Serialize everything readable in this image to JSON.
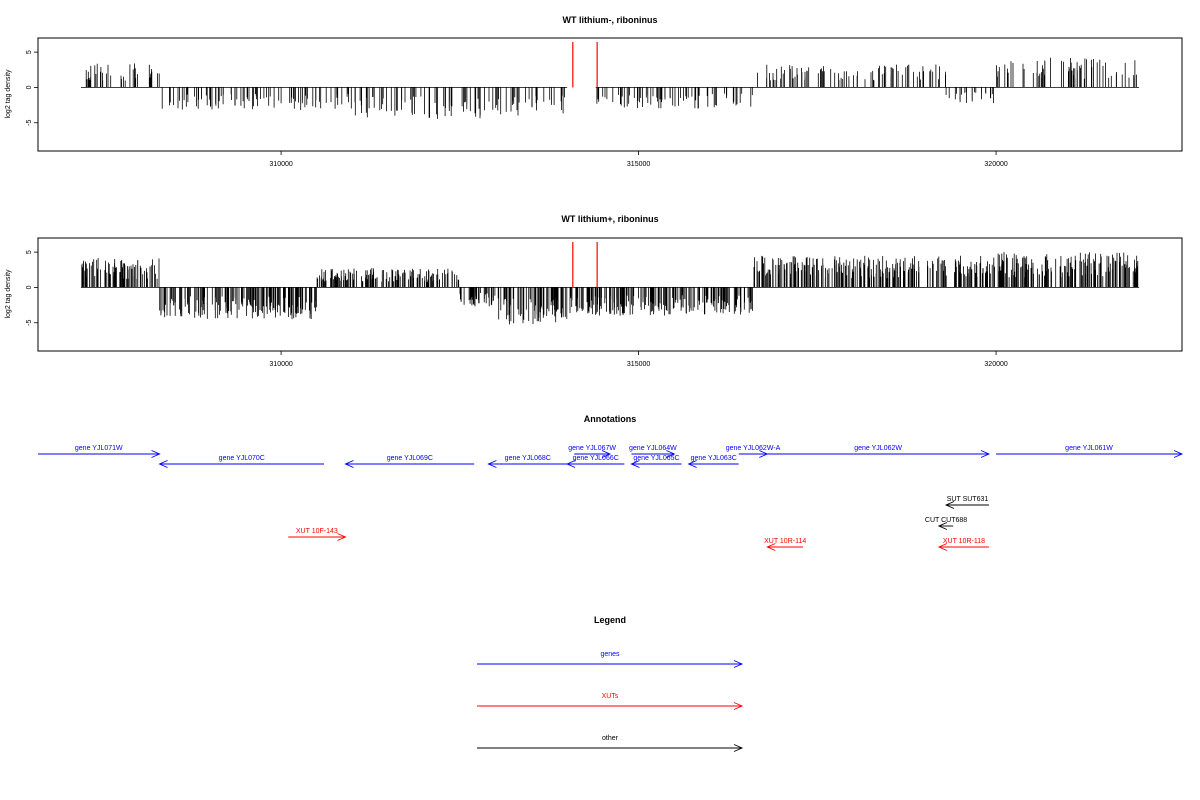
{
  "colors": {
    "gene": "#0000ff",
    "xut": "#ff0000",
    "other": "#000000",
    "marker": "#ff0000",
    "signal": "#000000"
  },
  "chart_data": [
    {
      "type": "bar",
      "title": "WT lithium-, riboninus",
      "ylabel": "log2 tag density",
      "xlim": [
        306600,
        322600
      ],
      "ylim": [
        -9,
        7
      ],
      "xticks": [
        310000,
        315000,
        320000
      ],
      "xtick_labels": [
        "310000",
        "315000",
        "320000"
      ],
      "yticks": [
        -5,
        0,
        5
      ],
      "ytick_labels": [
        "-5",
        "0",
        "5"
      ],
      "markers_x": [
        314080,
        314420
      ],
      "segments": [
        {
          "x": [
            307200,
            308300
          ],
          "level": 2.8
        },
        {
          "x": [
            308300,
            310950
          ],
          "level": -2.6
        },
        {
          "x": [
            310950,
            311800
          ],
          "level": -3.4
        },
        {
          "x": [
            311800,
            313200
          ],
          "level": -3.6
        },
        {
          "x": [
            313200,
            314000
          ],
          "level": -3.2
        },
        {
          "x": [
            314400,
            316600
          ],
          "level": -2.4
        },
        {
          "x": [
            316600,
            319300
          ],
          "level": 2.6
        },
        {
          "x": [
            319300,
            320000
          ],
          "level": -1.8
        },
        {
          "x": [
            320000,
            322000
          ],
          "level": 3.4
        }
      ],
      "grid": false
    },
    {
      "type": "bar",
      "title": "WT lithium+, riboninus",
      "ylabel": "log2 tag density",
      "xlim": [
        306600,
        322600
      ],
      "ylim": [
        -9,
        7
      ],
      "xticks": [
        310000,
        315000,
        320000
      ],
      "xtick_labels": [
        "310000",
        "315000",
        "320000"
      ],
      "yticks": [
        -5,
        0,
        5
      ],
      "ytick_labels": [
        "-5",
        "0",
        "5"
      ],
      "markers_x": [
        314080,
        314420
      ],
      "segments": [
        {
          "x": [
            307200,
            308300
          ],
          "level": 3.4
        },
        {
          "x": [
            308300,
            310500
          ],
          "level": -3.6
        },
        {
          "x": [
            310500,
            312500
          ],
          "level": 2.2
        },
        {
          "x": [
            312500,
            313000
          ],
          "level": -2.2
        },
        {
          "x": [
            313000,
            314000
          ],
          "level": -4.2
        },
        {
          "x": [
            314000,
            316600
          ],
          "level": -3.2
        },
        {
          "x": [
            316600,
            320000
          ],
          "level": 3.6
        },
        {
          "x": [
            320000,
            322000
          ],
          "level": 4.0
        }
      ],
      "grid": false
    }
  ],
  "annotations": {
    "title": "Annotations",
    "features": [
      {
        "label": "gene YJL071W",
        "kind": "gene",
        "start": 306600,
        "end": 308300,
        "strand": "+",
        "row": 0
      },
      {
        "label": "gene YJL070C",
        "kind": "gene",
        "start": 308300,
        "end": 310600,
        "strand": "-",
        "row": 1
      },
      {
        "label": "gene YJL069C",
        "kind": "gene",
        "start": 310900,
        "end": 312700,
        "strand": "-",
        "row": 1
      },
      {
        "label": "gene YJL068C",
        "kind": "gene",
        "start": 312900,
        "end": 314000,
        "strand": "-",
        "row": 1
      },
      {
        "label": "gene YJL067W",
        "kind": "gene",
        "start": 314100,
        "end": 314600,
        "strand": "+",
        "row": 0
      },
      {
        "label": "gene YJL066C",
        "kind": "gene",
        "start": 314000,
        "end": 314800,
        "strand": "-",
        "row": 1
      },
      {
        "label": "gene YJL064W",
        "kind": "gene",
        "start": 314900,
        "end": 315500,
        "strand": "+",
        "row": 0
      },
      {
        "label": "gene YJL065C",
        "kind": "gene",
        "start": 314900,
        "end": 315600,
        "strand": "-",
        "row": 1
      },
      {
        "label": "gene YJL063C",
        "kind": "gene",
        "start": 315700,
        "end": 316400,
        "strand": "-",
        "row": 1
      },
      {
        "label": "gene YJL062W-A",
        "kind": "gene",
        "start": 316400,
        "end": 316800,
        "strand": "+",
        "row": 0
      },
      {
        "label": "gene YJL062W",
        "kind": "gene",
        "start": 316800,
        "end": 319900,
        "strand": "+",
        "row": 0
      },
      {
        "label": "gene YJL061W",
        "kind": "gene",
        "start": 320000,
        "end": 322600,
        "strand": "+",
        "row": 0
      },
      {
        "label": "SUT SUT631",
        "kind": "other",
        "start": 319300,
        "end": 319900,
        "strand": "-",
        "row": 4
      },
      {
        "label": "CUT CUT688",
        "kind": "other",
        "start": 319200,
        "end": 319400,
        "strand": "-",
        "row": 5
      },
      {
        "label": "XUT 10F-143",
        "kind": "xut",
        "start": 310100,
        "end": 310900,
        "strand": "+",
        "row": 6
      },
      {
        "label": "XUT 10R-114",
        "kind": "xut",
        "start": 316800,
        "end": 317300,
        "strand": "-",
        "row": 7
      },
      {
        "label": "XUT 10R-118",
        "kind": "xut",
        "start": 319200,
        "end": 319900,
        "strand": "-",
        "row": 7
      }
    ]
  },
  "legend": {
    "title": "Legend",
    "items": [
      {
        "label": "genes",
        "kind": "gene"
      },
      {
        "label": "XUTs",
        "kind": "xut"
      },
      {
        "label": "other",
        "kind": "other"
      }
    ]
  }
}
